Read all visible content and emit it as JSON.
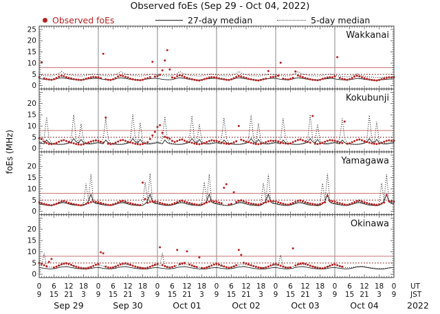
{
  "title": "Observed foEs (Sep 29 - Oct 04, 2022)",
  "legend": {
    "observed": "Observed foEs",
    "median27": "27-day median",
    "median5": "5-day median"
  },
  "colors": {
    "observed": "#b22222",
    "median": "#1a1a1a",
    "threshold_solid": "#cf8080",
    "threshold_dotted": "#9e2a2a",
    "grid_day": "#7a7a7a",
    "border": "#3a3a3a",
    "text": "#111111"
  },
  "chart_data": {
    "type": "scatter",
    "title": "Observed foEs (Sep 29 - Oct 04, 2022)",
    "ylabel": "foEs (MHz)",
    "ylim": [
      0,
      25
    ],
    "yticks": [
      0,
      5,
      10,
      15,
      20,
      25
    ],
    "x_range_hours": [
      0,
      144
    ],
    "sample_step_hours": 1,
    "grid": "day-lines",
    "legend_position": "top",
    "ut_tick_labels": [
      "0",
      "6",
      "12",
      "18"
    ],
    "ut_final_label": "0",
    "jst_tick_labels": [
      "9",
      "15",
      "21",
      "3"
    ],
    "jst_final_label": "9",
    "axis_units": {
      "ut": "UT",
      "jst": "JST",
      "year": "2022"
    },
    "dates": [
      "Sep 29",
      "Sep 30",
      "Oct 01",
      "Oct 02",
      "Oct 03",
      "Oct 04"
    ],
    "thresholds": {
      "solid": 8,
      "dotted": 5
    },
    "stations": [
      {
        "name": "Wakkanai",
        "observed": "3.8,10.4,3.2,2.9,2.7,2.6,2.9,3.4,4.0,4.4,4.2,3.8,3.5,3.2,2.9,2.7,2.6,2.5,2.7,3.1,3.4,3.7,3.9,3.8,3.7,3.3,14.2,2.8,2.6,2.5,2.8,3.3,4.1,4.5,4.3,3.9,3.6,3.1,2.8,2.6,2.5,2.4,2.6,3.0,3.3,3.8,10.6,4.0,4.2,4.8,6.8,11.2,15.8,7.2,3.6,3.4,4.2,4.6,4.4,3.9,3.5,3.1,2.8,2.6,2.4,2.3,2.5,2.9,3.2,3.6,3.8,3.7,3.6,3.2,3.0,2.8,2.6,2.5,2.8,3.3,3.9,4.3,4.1,3.7,3.4,3.0,2.8,2.6,2.4,2.3,2.5,2.8,3.1,6.5,3.8,3.9,4.0,4.4,10.2,3.1,2.8,2.7,3.0,3.5,6.3,4.5,4.2,3.8,3.4,3.1,2.8,2.6,2.5,2.4,2.6,3.0,3.3,3.6,3.8,3.7,4.1,12.7,3.4,3.0,2.8,2.6,2.9,3.4,4.0,4.4,4.1,3.7,3.3,3.0,2.7,2.5,2.4,2.3,2.5,2.9,3.2,3.5,3.7,3.6,3.7",
        "median27": "3.2,3.0,2.8,2.7,2.6,2.6,2.7,3.0,3.3,3.5,3.4,3.2,3.0,2.8,2.7,2.6,2.5,2.5,2.6,2.8,3.0,3.1,3.2,3.2,3.2,3.0,2.8,2.7,2.6,2.6,2.7,3.0,3.3,3.5,3.4,3.2,3.0,2.8,2.7,2.6,2.5,2.5,2.6,2.8,3.0,3.1,3.2,3.2,3.2,3.0,2.8,2.7,2.6,2.6,2.7,3.0,3.3,3.5,3.4,3.2,3.0,2.8,2.7,2.6,2.5,2.5,2.6,2.8,3.0,3.1,3.2,3.2,3.2,3.0,2.8,2.7,2.6,2.6,2.7,3.0,3.3,3.5,3.4,3.2,3.0,2.8,2.7,2.6,2.5,2.5,2.6,2.8,3.0,3.1,3.2,3.2,3.2,3.0,2.8,2.7,2.6,2.6,2.7,3.0,3.3,3.5,3.4,3.2,3.0,2.8,2.7,2.6,2.5,2.5,2.6,2.8,3.0,3.1,3.2,3.2,3.0,2.8,2.7,2.6,2.5,2.5,2.6,2.8,3.0,3.2,3.1,3.0,2.8,2.7,2.6,2.5,2.4,2.4,2.5,2.6,2.7,2.8,2.9,2.9,2.9",
        "median5": "4.8,4.6,4.5,4.4,4.3,4.3,4.5,4.9,5.3,6.3,5.6,5.1,4.9,4.7,4.5,4.4,4.3,4.2,4.4,4.6,4.8,5.0,5.1,5.0,4.8,4.6,4.5,4.4,4.3,4.3,4.5,4.9,5.3,6.3,5.6,5.1,4.9,4.7,4.5,4.4,4.3,4.2,4.4,4.6,4.8,5.0,5.1,5.0,4.8,4.6,4.5,4.4,4.3,4.3,4.5,4.9,5.3,6.3,5.6,5.1,4.9,4.7,4.5,4.4,4.3,4.2,4.4,4.6,4.8,5.0,5.1,5.0,4.8,4.6,4.5,4.4,4.3,4.3,4.5,4.9,5.3,6.3,5.6,5.1,4.9,4.7,4.5,4.4,4.3,4.2,4.4,4.6,4.8,5.0,5.1,5.0,4.8,4.6,4.5,4.4,4.3,4.3,4.5,4.9,5.3,6.3,5.6,5.1,4.9,4.7,4.5,4.4,4.3,4.2,4.4,4.6,4.8,5.0,5.1,5.0,4.6,4.4,4.2,4.1,4.0,3.9,4.0,4.3,4.6,5.2,4.8,4.4,4.2,4.0,3.9,3.8,3.7,3.6,3.6,3.7,3.8,3.9,3.9,3.8,3.8"
      },
      {
        "name": "Kokubunji",
        "observed": "4.6,4.2,3.1,2.4,2.0,1.9,2.1,2.5,3.0,3.5,3.7,3.3,2.9,2.6,2.3,2.0,1.8,1.7,1.9,2.3,2.7,3.1,3.4,3.6,3.4,3.0,2.6,13.8,2.1,1.9,2.1,2.6,3.1,3.6,3.8,3.4,3.0,2.7,2.4,2.1,1.9,1.8,2.0,2.3,2.8,4.2,5.8,7.4,9.6,10.4,7.0,5.2,4.8,4.3,3.4,2.9,3.3,3.8,4.0,3.5,3.1,2.8,2.5,2.2,2.0,1.9,2.1,2.4,2.9,3.3,3.6,3.5,3.4,3.0,2.6,2.3,2.1,2.0,2.2,2.7,3.2,10.0,3.9,3.5,3.1,2.8,2.5,2.2,2.0,1.9,2.1,2.4,2.8,3.2,3.5,3.4,3.5,3.1,2.7,2.4,2.2,2.1,2.3,2.8,3.3,3.8,4.0,3.6,3.2,2.9,2.6,14.5,2.1,2.0,2.2,2.5,3.0,3.4,3.7,3.6,3.5,3.1,2.7,2.4,12.0,2.1,2.3,2.8,3.3,3.8,4.0,3.6,3.2,2.9,2.6,2.3,2.1,2.0,2.2,2.5,3.0,3.4,3.6,3.5,3.5",
        "median27": "2.6,2.3,2.1,3.8,2.6,2.2,2.0,1.9,1.8,1.8,1.9,2.1,2.4,2.8,4.4,3.0,2.4,4.0,2.6,2.2,2.0,2.0,2.2,2.4,2.6,2.3,2.1,3.8,2.6,2.2,2.0,1.9,1.8,1.8,1.9,2.1,2.4,2.8,4.4,3.0,2.4,4.0,2.6,2.2,2.0,2.0,2.2,2.4,2.6,2.3,2.1,3.8,2.6,2.2,2.0,1.9,1.8,1.8,1.9,2.1,2.4,2.8,4.4,3.0,2.4,4.0,2.6,2.2,2.0,2.0,2.2,2.4,2.6,2.3,2.1,3.8,2.6,2.2,2.0,1.9,1.8,1.8,1.9,2.1,2.4,2.8,4.4,3.0,2.4,4.0,2.6,2.2,2.0,2.0,2.2,2.4,2.6,2.3,2.1,3.8,2.6,2.2,2.0,1.9,1.8,1.8,1.9,2.1,2.4,2.8,4.4,3.0,2.4,4.0,2.6,2.2,2.0,2.0,2.2,2.4,2.6,2.3,2.1,3.8,2.6,2.2,2.0,1.9,1.8,1.8,1.9,2.1,2.4,2.8,4.4,3.0,2.4,4.0,2.6,2.2,2.0,2.0,2.2,2.4,2.6",
        "median5": "3.0,2.6,4.5,14.0,4.5,2.5,2.2,2.0,1.9,1.9,2.0,2.3,2.7,4.0,15.0,4.2,2.8,11.0,3.4,2.6,2.3,2.3,2.5,2.8,3.0,2.6,4.4,13.5,4.4,2.5,2.2,2.0,1.9,1.9,2.0,2.3,2.7,4.1,15.2,4.3,2.8,11.4,3.4,2.6,2.3,2.3,2.5,2.8,3.0,2.6,4.5,14.2,4.5,2.5,2.2,2.0,1.9,1.9,2.0,2.3,2.7,4.0,14.6,4.2,2.8,10.8,3.4,2.6,2.3,2.3,2.5,2.8,3.0,2.6,4.4,13.6,4.4,2.5,2.2,2.0,1.9,1.9,2.0,2.3,2.7,4.1,15.0,4.3,2.8,11.2,3.4,2.6,2.3,2.3,2.5,2.8,3.0,2.6,4.5,13.4,4.5,2.5,2.2,2.0,1.9,1.9,2.0,2.3,2.7,4.0,15.1,4.2,2.8,10.9,3.4,2.6,2.3,2.3,2.5,2.8,3.0,2.6,4.4,13.5,4.4,2.5,2.2,2.0,1.9,1.9,2.0,2.3,2.7,4.0,14.8,4.2,2.8,11.8,3.4,2.6,2.3,2.3,2.5,2.8,3.0"
      },
      {
        "name": "Yamagawa",
        "observed": "4.0,3.6,3.3,3.0,2.8,2.7,3.0,3.4,3.9,4.4,4.6,4.2,3.8,3.5,3.2,3.0,2.8,2.7,2.9,3.3,3.7,4.1,4.3,4.2,4.1,3.7,3.4,3.1,2.9,2.8,3.1,3.5,4.0,4.5,4.7,4.3,3.9,3.6,3.3,3.1,2.9,2.8,12.8,5.5,3.8,4.2,4.4,4.3,4.2,3.8,3.5,3.2,3.0,2.9,3.2,3.6,4.1,4.6,4.8,4.4,4.0,3.7,3.4,3.2,3.0,2.9,3.1,3.5,3.9,4.3,4.5,4.4,4.3,3.9,3.6,10.5,12.1,3.0,3.3,8.5,4.2,4.7,4.9,4.5,4.1,3.8,3.5,3.3,3.1,3.0,3.2,3.6,4.0,4.4,4.6,4.5,4.4,4.0,3.7,3.4,3.1,3.0,3.3,3.7,4.2,4.7,4.9,4.5,4.1,3.8,3.5,3.3,3.1,3.0,3.2,3.6,4.0,6.8,4.6,4.5,4.3,3.9,3.6,3.3,3.0,2.9,3.2,3.6,4.1,4.6,4.8,4.4,4.0,3.7,3.4,3.2,3.0,2.9,3.1,3.5,3.9,7.2,4.5,4.4,4.3",
        "median27": "3.4,3.1,2.9,2.7,2.6,2.6,2.8,3.1,3.5,3.8,3.9,3.6,3.3,3.0,2.8,2.7,2.6,2.5,2.7,3.4,4.6,7.6,4.2,3.5,3.4,3.1,2.9,2.7,2.6,2.6,2.8,3.1,3.5,3.8,3.9,3.6,3.3,3.0,2.8,2.7,2.6,2.5,2.7,3.4,4.6,7.6,4.2,3.5,3.4,3.1,2.9,2.7,2.6,2.6,2.8,3.1,3.5,3.8,3.9,3.6,3.3,3.0,2.8,2.7,2.6,2.5,2.7,3.4,4.6,7.6,4.2,3.5,3.4,3.1,2.9,2.7,2.6,2.6,2.8,3.1,3.5,3.8,3.9,3.6,3.3,3.0,2.8,2.7,2.6,2.5,2.7,3.4,4.6,7.6,4.2,3.5,3.4,3.1,2.9,2.7,2.6,2.6,2.8,3.1,3.5,3.8,3.9,3.6,3.3,3.0,2.8,2.7,2.6,2.5,2.7,3.4,4.6,7.6,4.2,3.5,3.4,3.1,2.9,2.7,2.6,2.6,2.8,3.1,3.5,3.8,3.9,3.6,3.3,3.0,2.8,2.7,2.6,2.5,2.7,3.4,4.6,7.6,4.2,3.5,3.4",
        "median5": "3.6,3.3,3.0,2.8,2.7,2.6,2.9,3.2,3.7,4.1,4.3,3.9,3.6,3.3,3.0,2.8,2.7,2.8,3.5,12.5,5.0,16.5,4.5,3.8,3.6,3.3,3.0,2.8,2.7,2.6,2.9,3.2,3.7,4.1,4.3,3.9,3.6,3.3,3.0,2.8,2.7,2.8,3.5,13.0,5.0,16.8,4.5,3.8,3.6,3.3,3.0,2.8,2.7,2.6,2.9,3.2,3.7,4.1,4.3,3.9,3.6,3.3,3.0,2.8,2.7,2.8,3.5,13.0,5.0,16.5,4.5,3.8,3.6,3.3,3.0,2.8,2.7,2.6,2.9,3.2,3.7,4.1,4.3,3.9,3.6,3.3,3.0,2.8,2.7,2.8,3.5,12.5,5.0,16.5,4.5,3.8,3.6,3.3,3.0,2.8,2.7,2.6,2.9,3.2,3.7,4.1,4.3,3.9,3.6,3.3,3.0,2.8,2.7,2.8,3.5,12.5,5.0,16.8,4.5,3.8,3.6,3.3,3.0,2.8,2.7,2.6,2.9,3.2,3.7,4.1,4.3,3.9,3.6,3.3,3.0,2.8,2.7,2.8,3.5,12.5,5.0,16.5,4.5,3.8,3.6"
      },
      {
        "name": "Okinawa",
        "observed": "5.0,4.6,4.0,3.5,5.5,6.8,3.0,3.4,3.9,4.4,4.7,4.9,4.6,4.2,3.7,3.3,3.0,2.8,2.6,2.5,2.8,3.2,3.7,4.2,4.5,9.8,9.3,3.4,3.0,2.8,3.0,3.4,3.9,4.4,4.7,4.9,4.6,4.2,3.8,3.4,3.1,2.9,2.7,2.6,2.9,3.3,3.8,4.2,4.6,12.0,4.1,3.6,3.2,3.0,3.2,3.6,10.8,4.5,4.8,5.0,10.2,4.3,3.9,3.5,3.2,7.5,2.8,2.7,3.0,3.4,3.9,4.3,4.7,4.3,3.9,3.5,3.1,2.9,3.1,3.5,4.0,10.8,8.6,5.1,4.8,4.4,4.0,3.6,3.3,3.0,2.8,2.7,3.0,3.4,3.9,4.3,4.6,4.2,3.8,3.4,3.0,2.8,3.0,11.5,3.9,4.4,4.7,4.9,4.6,4.2,3.8,3.4,3.1,2.9,2.7,2.6,2.9,3.3,3.8,4.2,4.4,4.0,3.6,3.3,x,x,x,x,x,x,x,x,x,x,x,x,x,x,x,x,x,x,x,x,x",
        "median27": "3.0,2.8,2.6,2.5,2.4,2.4,2.5,2.7,3.0,3.2,3.3,3.4,3.2,3.0,2.8,2.6,2.5,2.4,2.3,2.3,2.4,2.6,2.8,2.9,3.0,2.8,2.6,2.5,2.4,2.4,2.5,2.7,3.0,3.2,3.3,3.4,3.2,3.0,2.8,2.6,2.5,2.4,2.3,2.3,2.4,2.6,2.8,2.9,3.0,2.8,2.6,2.5,2.4,2.4,2.5,2.7,3.0,3.2,3.3,3.4,3.2,3.0,2.8,2.6,2.5,2.4,2.3,2.3,2.4,2.6,2.8,2.9,3.0,2.8,2.6,2.5,2.4,2.4,2.5,2.7,3.0,3.2,3.3,3.4,3.2,3.0,2.8,2.6,2.5,2.4,2.3,2.3,2.4,2.6,2.8,2.9,3.0,2.8,2.6,2.5,2.4,2.4,2.5,2.7,3.0,3.2,3.3,3.4,3.2,3.0,2.8,2.6,2.5,2.4,2.3,2.3,2.4,2.6,2.8,2.9,3.0,2.8,2.6,2.5,2.4,2.4,2.5,2.7,3.0,3.2,3.3,3.4,3.2,3.0,2.8,2.6,2.5,2.4,2.3,2.3,2.4,2.6,2.8,2.9,3.0",
        "median5": "4.2,3.9,9.5,3.4,3.2,3.1,3.2,3.5,3.8,4.1,4.3,4.4,4.2,4.0,3.7,3.5,3.3,3.1,3.0,2.9,3.1,3.4,3.7,4.0,4.2,3.9,3.6,3.4,3.2,3.1,3.2,3.5,3.8,4.1,4.3,4.4,4.2,4.0,3.7,3.5,3.3,3.1,3.0,2.9,3.1,3.4,3.7,4.0,4.2,3.9,9.5,3.4,3.2,3.1,3.2,3.5,3.8,4.1,4.3,4.4,4.2,4.0,3.7,3.5,3.3,3.1,3.0,2.9,3.1,3.4,3.7,4.0,4.2,3.9,3.6,3.4,3.2,3.1,3.2,3.5,3.8,4.1,4.3,4.4,4.2,4.0,3.7,3.5,3.3,3.1,3.0,2.9,3.1,3.4,3.7,4.0,4.2,3.9,8.5,3.4,3.2,3.1,3.2,3.5,3.8,4.1,4.3,4.4,4.2,4.0,3.7,3.5,3.3,3.1,3.0,2.9,3.1,3.4,3.7,4.0,3.9,3.7,3.4,3.2,3.0,2.9,2.9,3.0,3.2,3.4,3.5,3.5,3.4,3.2,3.0,2.9,2.7,2.6,2.5,2.5,2.6,2.7,2.8,2.9,2.9"
      }
    ]
  }
}
